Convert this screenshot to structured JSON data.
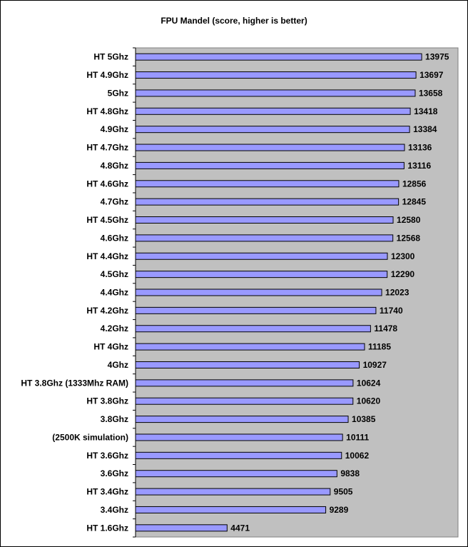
{
  "chart_data": {
    "type": "bar",
    "orientation": "horizontal",
    "title": "FPU Mandel (score, higher is better)",
    "categories": [
      "HT 5Ghz",
      "HT 4.9Ghz",
      "5Ghz",
      "HT 4.8Ghz",
      "4.9Ghz",
      "HT 4.7Ghz",
      "4.8Ghz",
      "HT 4.6Ghz",
      "4.7Ghz",
      "HT 4.5Ghz",
      "4.6Ghz",
      "HT 4.4Ghz",
      "4.5Ghz",
      "4.4Ghz",
      "HT 4.2Ghz",
      "4.2Ghz",
      "HT 4Ghz",
      "4Ghz",
      "HT 3.8Ghz (1333Mhz RAM)",
      "HT 3.8Ghz",
      "3.8Ghz",
      "(2500K simulation)",
      "HT 3.6Ghz",
      "3.6Ghz",
      "HT 3.4Ghz",
      "3.4Ghz",
      "HT 1.6Ghz"
    ],
    "values": [
      13975,
      13697,
      13658,
      13418,
      13384,
      13136,
      13116,
      12856,
      12845,
      12580,
      12568,
      12300,
      12290,
      12023,
      11740,
      11478,
      11185,
      10927,
      10624,
      10620,
      10385,
      10111,
      10062,
      9838,
      9505,
      9289,
      4471
    ],
    "xlim": [
      0,
      15750
    ],
    "grid": false,
    "legend": "none",
    "colors": {
      "bar": "#9999ff",
      "plot_background": "#c0c0c0",
      "bar_border": "#000000"
    }
  }
}
